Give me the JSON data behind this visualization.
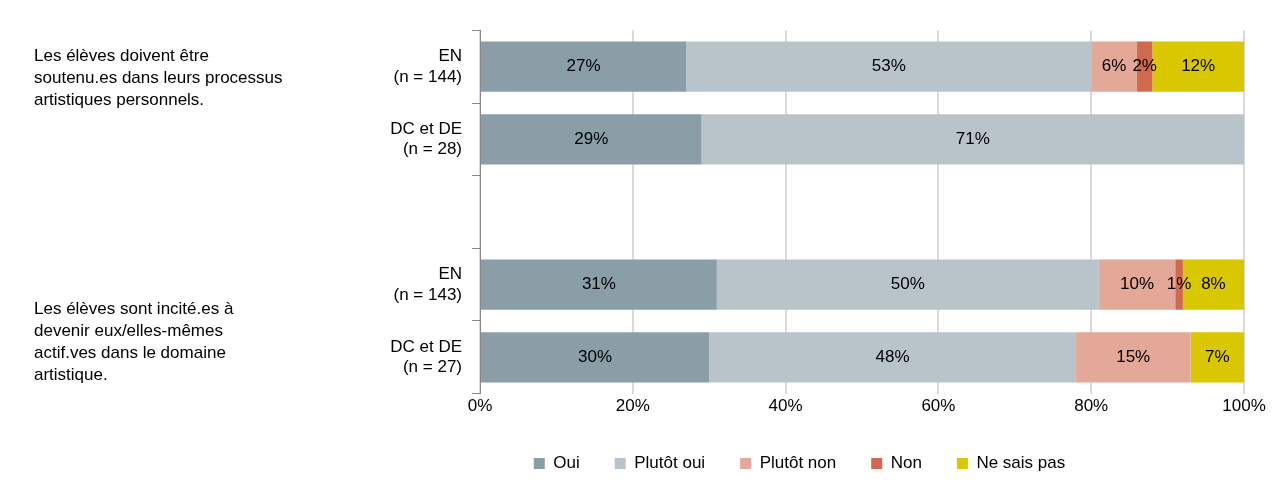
{
  "chart_data": {
    "type": "bar",
    "orientation": "horizontal",
    "stacked": true,
    "categories": [
      "EN\n(n = 144)",
      "DC et DE\n(n = 28)",
      null,
      "EN\n(n = 143)",
      "DC et DE\n(n = 27)"
    ],
    "series": [
      {
        "name": "Oui",
        "color": "#8a9ea8",
        "values": [
          27,
          29,
          null,
          31,
          30
        ],
        "value_labels": [
          "27%",
          "29%",
          null,
          "31%",
          "30%"
        ]
      },
      {
        "name": "Plutôt oui",
        "color": "#b8c4ca",
        "values": [
          53,
          71,
          null,
          50,
          48
        ],
        "value_labels": [
          "53%",
          "71%",
          null,
          "50%",
          "48%"
        ]
      },
      {
        "name": "Plutôt non",
        "color": "#e4a898",
        "values": [
          6,
          null,
          null,
          10,
          15
        ],
        "value_labels": [
          "6%",
          null,
          null,
          "10%",
          "15%"
        ]
      },
      {
        "name": "Non",
        "color": "#d0694e",
        "values": [
          2,
          null,
          null,
          1,
          null
        ],
        "value_labels": [
          "2%",
          null,
          null,
          "1%",
          null
        ]
      },
      {
        "name": "Ne sais pas",
        "color": "#d9c700",
        "values": [
          12,
          null,
          null,
          8,
          7
        ],
        "value_labels": [
          "12%",
          null,
          null,
          "8%",
          "7%"
        ]
      }
    ],
    "xlim": [
      0,
      100
    ],
    "xticks": [
      {
        "value": 0,
        "label": "0%"
      },
      {
        "value": 20,
        "label": "20%"
      },
      {
        "value": 40,
        "label": "40%"
      },
      {
        "value": 60,
        "label": "60%"
      },
      {
        "value": 80,
        "label": "80%"
      },
      {
        "value": 100,
        "label": "100%"
      }
    ],
    "grid": "x",
    "legend": "bottom",
    "annotations": [
      "Les élèves doivent être soutenu.es dans leurs processus artistiques personnels.",
      "Les élèves sont incité.es à devenir eux/elles-mêmes actif.ves dans le domaine artistique."
    ]
  }
}
